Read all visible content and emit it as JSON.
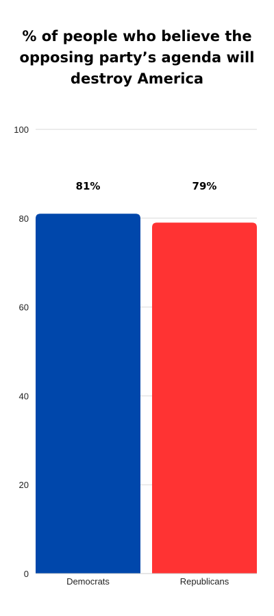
{
  "chart_data": {
    "type": "bar",
    "title": "% of people who believe the opposing party’s agenda will destroy America",
    "categories": [
      "Democrats",
      "Republicans"
    ],
    "values": [
      81,
      79
    ],
    "value_labels": [
      "81%",
      "79%"
    ],
    "colors": [
      "#0047ab",
      "#ff3333"
    ],
    "ylim": [
      0,
      100
    ],
    "yticks": [
      "0",
      "20",
      "40",
      "60",
      "80",
      "100"
    ],
    "grid": true,
    "xlabel": "",
    "ylabel": ""
  }
}
